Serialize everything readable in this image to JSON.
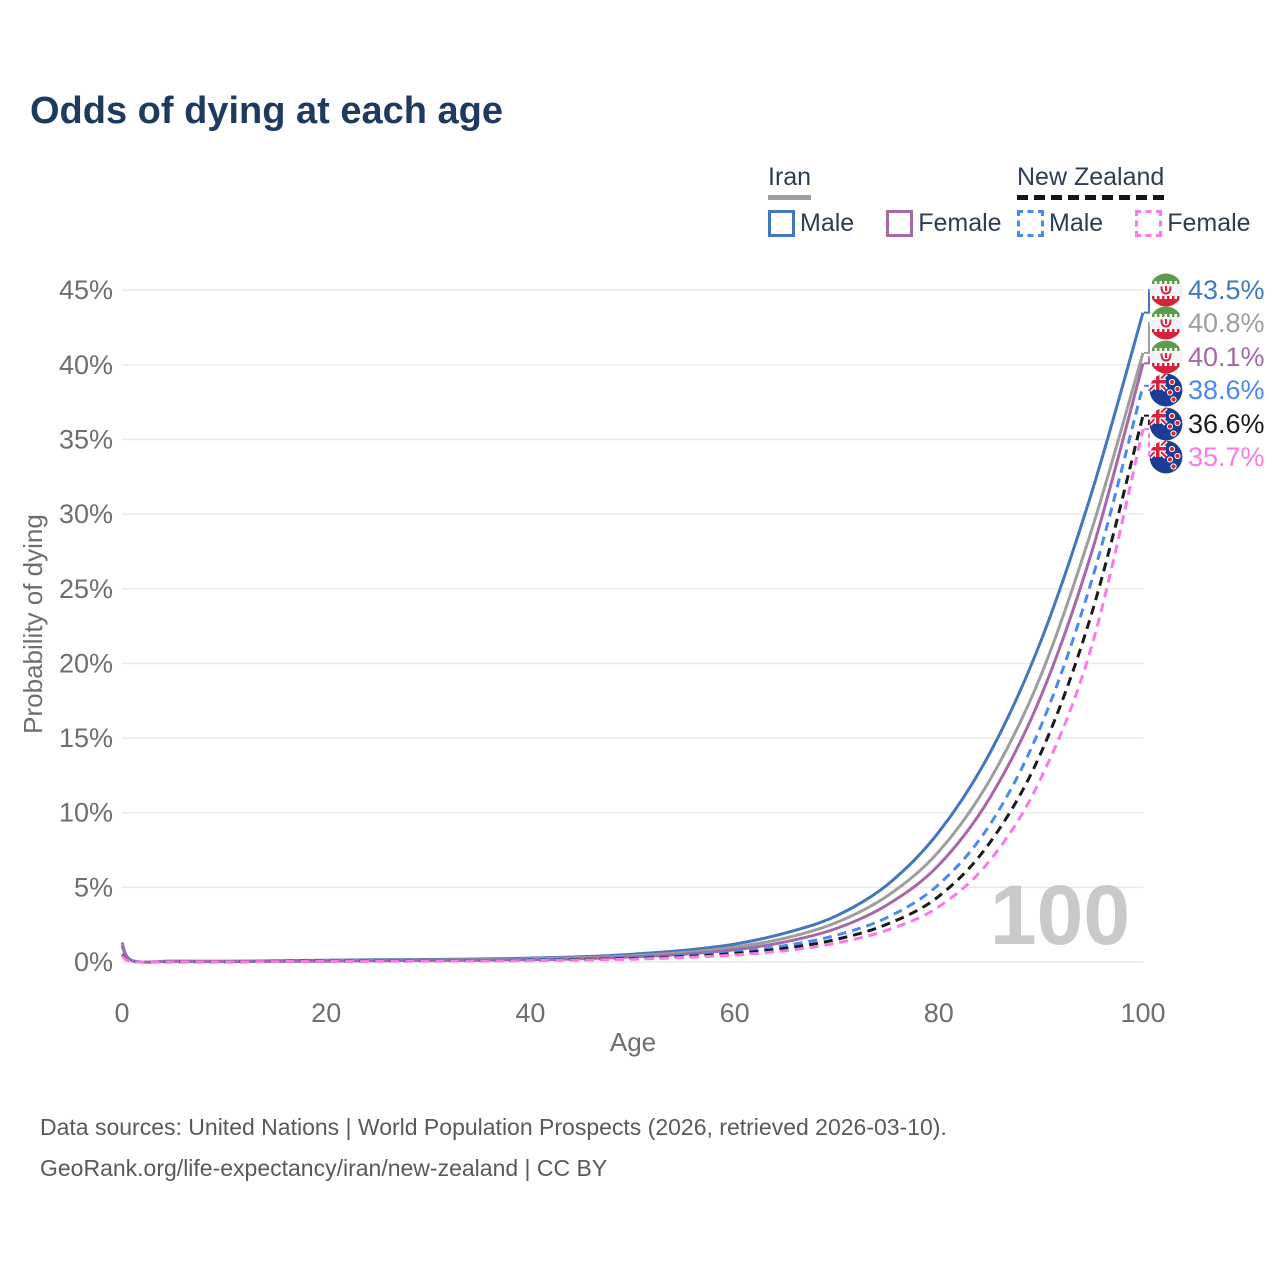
{
  "title": "Odds of dying at each age",
  "legend": {
    "groups": [
      {
        "label": "Iran",
        "line_style": "solid",
        "line_color": "#9e9e9e",
        "items": [
          {
            "label": "Male",
            "color": "#4377bd",
            "dashed": false
          },
          {
            "label": "Female",
            "color": "#a668a8",
            "dashed": false
          }
        ]
      },
      {
        "label": "New Zealand",
        "line_style": "dashed",
        "line_color": "#151515",
        "items": [
          {
            "label": "Male",
            "color": "#4a89ee",
            "dashed": true
          },
          {
            "label": "Female",
            "color": "#f97ae6",
            "dashed": true
          }
        ]
      }
    ]
  },
  "chart_data": {
    "type": "line",
    "title": "Odds of dying at each age",
    "xlabel": "Age",
    "ylabel": "Probability of dying",
    "xlim": [
      0,
      100
    ],
    "ylim": [
      0,
      45
    ],
    "x_ticks": [
      0,
      20,
      40,
      60,
      80,
      100
    ],
    "y_ticks": [
      0,
      5,
      10,
      15,
      20,
      25,
      30,
      35,
      40,
      45
    ],
    "y_tick_suffix": "%",
    "grid": true,
    "legend_position": "top-right",
    "watermark": "100",
    "ages": [
      0,
      1,
      5,
      10,
      15,
      20,
      25,
      30,
      35,
      40,
      45,
      50,
      55,
      60,
      65,
      70,
      75,
      80,
      85,
      90,
      95,
      100
    ],
    "series": [
      {
        "name": "Iran Male",
        "country": "Iran",
        "sex": "Male",
        "line": "solid",
        "color": "#4377bd",
        "end_value": 43.5,
        "end_label": "43.5%",
        "values": [
          1.3,
          0.1,
          0.06,
          0.05,
          0.08,
          0.12,
          0.15,
          0.17,
          0.2,
          0.26,
          0.35,
          0.52,
          0.78,
          1.2,
          1.95,
          3.1,
          5.2,
          8.7,
          14.0,
          21.5,
          31.5,
          43.5
        ]
      },
      {
        "name": "Iran Both sexes",
        "country": "Iran",
        "sex": "Both",
        "line": "solid",
        "color": "#9e9e9e",
        "end_value": 40.8,
        "end_label": "40.8%",
        "values": [
          1.2,
          0.09,
          0.05,
          0.04,
          0.06,
          0.09,
          0.11,
          0.13,
          0.16,
          0.21,
          0.28,
          0.42,
          0.63,
          1.0,
          1.6,
          2.65,
          4.45,
          7.4,
          12.2,
          19.2,
          29.0,
          40.8
        ]
      },
      {
        "name": "Iran Female",
        "country": "Iran",
        "sex": "Female",
        "line": "solid",
        "color": "#a668a8",
        "end_value": 40.1,
        "end_label": "40.1%",
        "values": [
          1.1,
          0.08,
          0.04,
          0.03,
          0.04,
          0.06,
          0.08,
          0.1,
          0.12,
          0.16,
          0.22,
          0.34,
          0.52,
          0.82,
          1.35,
          2.25,
          3.85,
          6.5,
          11.0,
          17.8,
          27.5,
          40.1
        ]
      },
      {
        "name": "New Zealand Male",
        "country": "New Zealand",
        "sex": "Male",
        "line": "dashed",
        "color": "#4a89ee",
        "end_value": 38.6,
        "end_label": "38.6%",
        "values": [
          0.5,
          0.04,
          0.01,
          0.01,
          0.05,
          0.07,
          0.08,
          0.09,
          0.11,
          0.14,
          0.19,
          0.28,
          0.43,
          0.68,
          1.1,
          1.8,
          3.0,
          5.2,
          9.2,
          15.8,
          25.6,
          38.6
        ]
      },
      {
        "name": "New Zealand Both sexes",
        "country": "New Zealand",
        "sex": "Both",
        "line": "dashed",
        "color": "#1b1b1b",
        "end_value": 36.6,
        "end_label": "36.6%",
        "values": [
          0.45,
          0.035,
          0.01,
          0.01,
          0.04,
          0.055,
          0.065,
          0.075,
          0.09,
          0.115,
          0.16,
          0.235,
          0.36,
          0.57,
          0.92,
          1.52,
          2.55,
          4.4,
          8.0,
          14.0,
          23.4,
          36.6
        ]
      },
      {
        "name": "New Zealand Female",
        "country": "New Zealand",
        "sex": "Female",
        "line": "dashed",
        "color": "#f97ae6",
        "end_value": 35.7,
        "end_label": "35.7%",
        "values": [
          0.4,
          0.03,
          0.01,
          0.01,
          0.03,
          0.04,
          0.05,
          0.06,
          0.075,
          0.095,
          0.13,
          0.19,
          0.3,
          0.47,
          0.76,
          1.27,
          2.15,
          3.7,
          6.8,
          12.3,
          21.2,
          35.7
        ]
      }
    ]
  },
  "footer": {
    "line1": "Data sources: United Nations | World Population Prospects (2026, retrieved 2026-03-10).",
    "line2": "GeoRank.org/life-expectancy/iran/new-zealand | CC BY"
  }
}
